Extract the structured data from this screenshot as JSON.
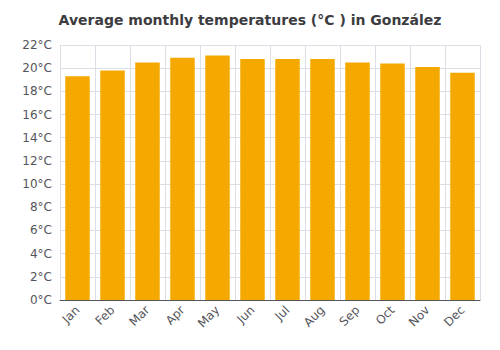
{
  "chart_data": {
    "type": "bar",
    "title": "Average monthly temperatures (°C ) in González",
    "categories": [
      "Jan",
      "Feb",
      "Mar",
      "Apr",
      "May",
      "Jun",
      "Jul",
      "Aug",
      "Sep",
      "Oct",
      "Nov",
      "Dec"
    ],
    "values": [
      19.3,
      19.8,
      20.5,
      20.9,
      21.1,
      20.8,
      20.8,
      20.8,
      20.5,
      20.4,
      20.1,
      19.6
    ],
    "color": "#F5A800",
    "ylim": [
      0,
      22
    ],
    "yticks": [
      {
        "value": 0,
        "label": "0°C"
      },
      {
        "value": 2,
        "label": "2°C"
      },
      {
        "value": 4,
        "label": "4°C"
      },
      {
        "value": 6,
        "label": "6°C"
      },
      {
        "value": 8,
        "label": "8°C"
      },
      {
        "value": 10,
        "label": "10°C"
      },
      {
        "value": 12,
        "label": "12°C"
      },
      {
        "value": 14,
        "label": "14°C"
      },
      {
        "value": 16,
        "label": "16°C"
      },
      {
        "value": 18,
        "label": "18°C"
      },
      {
        "value": 20,
        "label": "20°C"
      },
      {
        "value": 22,
        "label": "22°C"
      }
    ],
    "grid": true
  }
}
